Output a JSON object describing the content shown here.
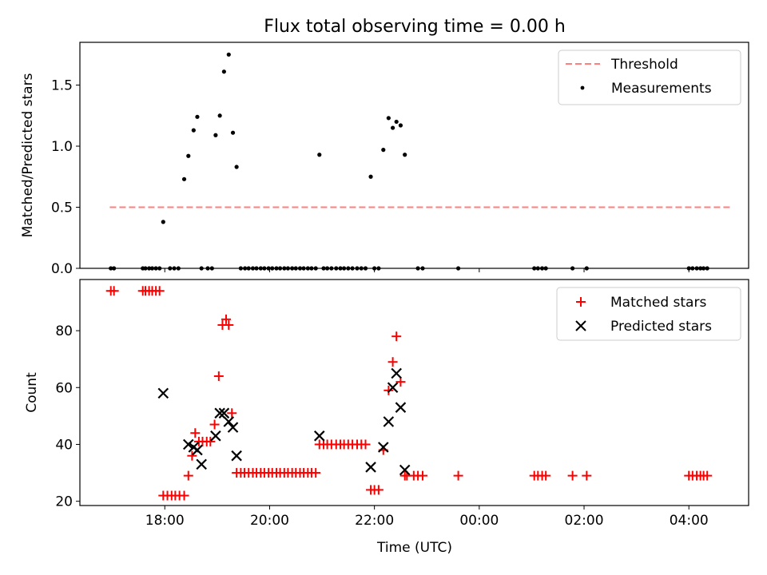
{
  "title": "Flux total observing time = 0.00 h",
  "chart_data": [
    {
      "type": "scatter",
      "ylabel": "Matched/Predicted stars",
      "xlabel": "",
      "xlim": [
        16.38,
        29.14
      ],
      "ylim": [
        0,
        1.85
      ],
      "yticks": [
        0.0,
        0.5,
        1.0,
        1.5
      ],
      "ytick_labels": [
        "0.0",
        "0.5",
        "1.0",
        "1.5"
      ],
      "legend_position": "top-right",
      "threshold": {
        "name": "Threshold",
        "value": 0.5,
        "x_range": [
          16.95,
          28.8
        ],
        "color": "#ff7f7f"
      },
      "series": [
        {
          "name": "Measurements",
          "color": "#000000",
          "x": [
            16.97,
            17.03,
            17.58,
            17.63,
            17.7,
            17.76,
            17.83,
            17.9,
            17.97,
            18.1,
            18.18,
            18.26,
            18.37,
            18.45,
            18.55,
            18.62,
            18.7,
            18.82,
            18.9,
            18.97,
            19.05,
            19.13,
            19.22,
            19.3,
            19.37,
            19.45,
            19.53,
            19.6,
            19.68,
            19.75,
            19.83,
            19.9,
            19.98,
            20.05,
            20.13,
            20.2,
            20.28,
            20.35,
            20.43,
            20.5,
            20.58,
            20.65,
            20.73,
            20.8,
            20.88,
            20.95,
            21.03,
            21.1,
            21.18,
            21.27,
            21.35,
            21.42,
            21.5,
            21.58,
            21.67,
            21.75,
            21.83,
            21.93,
            22.0,
            22.08,
            22.17,
            22.27,
            22.35,
            22.42,
            22.5,
            22.58,
            22.83,
            22.92,
            23.6,
            25.05,
            25.12,
            25.2,
            25.27,
            25.78,
            26.05,
            28.0,
            28.07,
            28.15,
            28.22,
            28.28,
            28.35
          ],
          "y": [
            0,
            0,
            0,
            0,
            0,
            0,
            0,
            0,
            0.38,
            0,
            0,
            0,
            0.73,
            0.92,
            1.13,
            1.24,
            0,
            0,
            0,
            1.09,
            1.25,
            1.61,
            1.75,
            1.11,
            0.83,
            0,
            0,
            0,
            0,
            0,
            0,
            0,
            0,
            0,
            0,
            0,
            0,
            0,
            0,
            0,
            0,
            0,
            0,
            0,
            0,
            0.93,
            0,
            0,
            0,
            0,
            0,
            0,
            0,
            0,
            0,
            0,
            0,
            0.75,
            0,
            0,
            0.97,
            1.23,
            1.15,
            1.2,
            1.17,
            0.93,
            0,
            0,
            0,
            0,
            0,
            0,
            0,
            0,
            0,
            0,
            0,
            0,
            0,
            0,
            0
          ]
        }
      ]
    },
    {
      "type": "scatter",
      "ylabel": "Count",
      "xlabel": "Time (UTC)",
      "xlim": [
        16.38,
        29.14
      ],
      "ylim": [
        18.5,
        98
      ],
      "yticks": [
        20,
        40,
        60,
        80
      ],
      "ytick_labels": [
        "20",
        "40",
        "60",
        "80"
      ],
      "xticks": [
        18,
        20,
        22,
        24,
        26,
        28
      ],
      "xtick_labels": [
        "18:00",
        "20:00",
        "22:00",
        "00:00",
        "02:00",
        "04:00"
      ],
      "legend_position": "top-right",
      "series": [
        {
          "name": "Matched stars",
          "marker": "plus",
          "color": "#ff0000",
          "x": [
            16.97,
            17.03,
            17.58,
            17.63,
            17.7,
            17.76,
            17.83,
            17.9,
            17.97,
            18.05,
            18.13,
            18.2,
            18.28,
            18.37,
            18.45,
            18.52,
            18.58,
            18.65,
            18.72,
            18.8,
            18.87,
            18.95,
            19.03,
            19.1,
            19.17,
            19.22,
            19.28,
            19.37,
            19.45,
            19.52,
            19.6,
            19.68,
            19.75,
            19.83,
            19.9,
            19.98,
            20.05,
            20.13,
            20.2,
            20.28,
            20.35,
            20.43,
            20.5,
            20.58,
            20.65,
            20.73,
            20.8,
            20.88,
            20.95,
            21.03,
            21.1,
            21.18,
            21.27,
            21.35,
            21.42,
            21.5,
            21.58,
            21.67,
            21.75,
            21.83,
            21.93,
            22.0,
            22.08,
            22.17,
            22.27,
            22.35,
            22.42,
            22.5,
            22.58,
            22.62,
            22.75,
            22.83,
            22.92,
            23.6,
            25.05,
            25.12,
            25.2,
            25.27,
            25.78,
            26.05,
            28.0,
            28.07,
            28.15,
            28.22,
            28.28,
            28.35
          ],
          "y": [
            94,
            94,
            94,
            94,
            94,
            94,
            94,
            94,
            22,
            22,
            22,
            22,
            22,
            22,
            29,
            36,
            44,
            41,
            41,
            41,
            41,
            47,
            64,
            82,
            84,
            82,
            51,
            30,
            30,
            30,
            30,
            30,
            30,
            30,
            30,
            30,
            30,
            30,
            30,
            30,
            30,
            30,
            30,
            30,
            30,
            30,
            30,
            30,
            40,
            40,
            40,
            40,
            40,
            40,
            40,
            40,
            40,
            40,
            40,
            40,
            24,
            24,
            24,
            38,
            59,
            69,
            78,
            62,
            29,
            29,
            29,
            29,
            29,
            29,
            29,
            29,
            29,
            29,
            29,
            29,
            29,
            29,
            29,
            29,
            29,
            29
          ]
        },
        {
          "name": "Predicted stars",
          "marker": "x",
          "color": "#000000",
          "x": [
            17.97,
            18.45,
            18.55,
            18.62,
            18.7,
            18.97,
            19.05,
            19.13,
            19.22,
            19.3,
            19.37,
            20.95,
            21.93,
            22.17,
            22.27,
            22.35,
            22.42,
            22.5,
            22.58
          ],
          "y": [
            58,
            40,
            39,
            38,
            33,
            43,
            51,
            51,
            48,
            46,
            36,
            43,
            32,
            39,
            48,
            60,
            65,
            53,
            31
          ]
        }
      ]
    }
  ]
}
